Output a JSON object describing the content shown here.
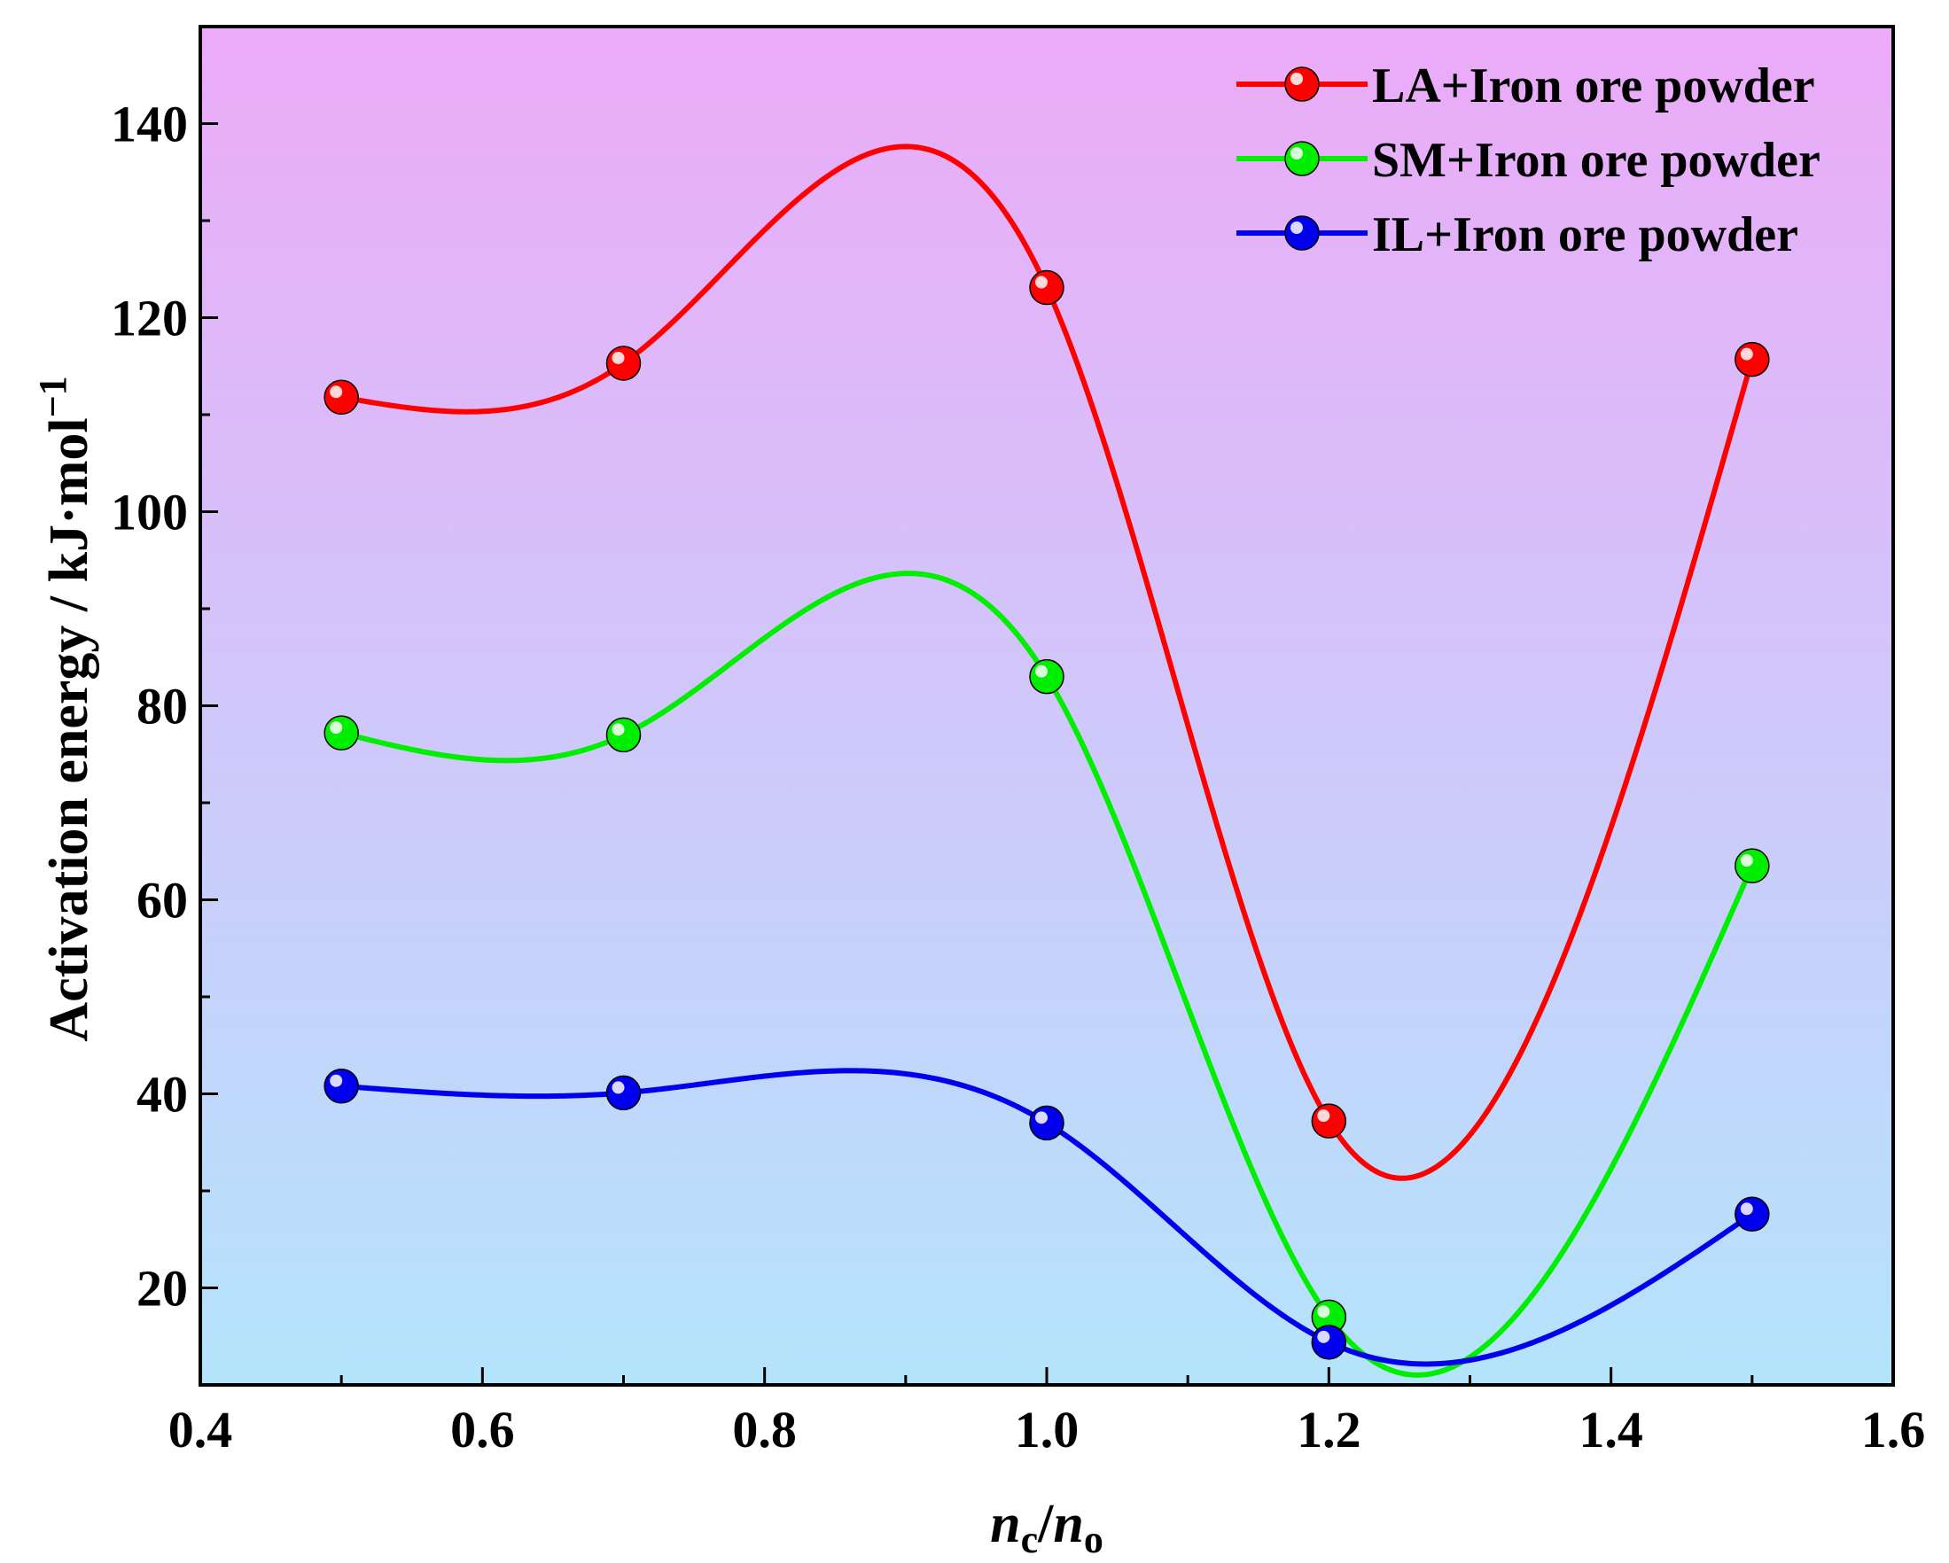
{
  "chart_data": {
    "type": "line",
    "title": "",
    "xlabel": {
      "main": "n",
      "sub": "c",
      "sep": "/",
      "main2": "n",
      "sub2": "o"
    },
    "ylabel": {
      "text": "Activation energy / kJ·mol",
      "sup": "−1"
    },
    "xlim": [
      0.4,
      1.6
    ],
    "ylim": [
      10,
      150
    ],
    "xticks": [
      0.4,
      0.6,
      0.8,
      1.0,
      1.2,
      1.4,
      1.6
    ],
    "xtick_labels": [
      "0.4",
      "0.6",
      "0.8",
      "1.0",
      "1.2",
      "1.4",
      "1.6"
    ],
    "yticks": [
      20,
      40,
      60,
      80,
      100,
      120,
      140
    ],
    "ytick_labels": [
      "20",
      "40",
      "60",
      "80",
      "100",
      "120",
      "140"
    ],
    "x": [
      0.5,
      0.7,
      1.0,
      1.2,
      1.5
    ],
    "series": [
      {
        "name": "LA+Iron ore powder",
        "color": "#ff0000",
        "values": [
          111.8,
          115.3,
          123.1,
          37.2,
          115.7
        ]
      },
      {
        "name": "SM+Iron ore powder",
        "color": "#00ee00",
        "values": [
          77.2,
          77.0,
          83.0,
          17.0,
          63.5
        ]
      },
      {
        "name": "IL+Iron ore powder",
        "color": "#0000ee",
        "values": [
          40.8,
          40.1,
          37.0,
          14.4,
          27.6
        ]
      }
    ],
    "legend_position": "top-right",
    "background_gradient": [
      "#ecaaf8",
      "#b4e4fc"
    ]
  }
}
